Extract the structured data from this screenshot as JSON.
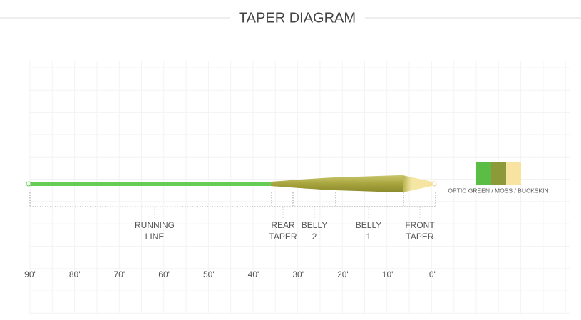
{
  "header": {
    "title": "TAPER DIAGRAM"
  },
  "sections": [
    {
      "lines": [
        "RUNNING",
        "LINE"
      ]
    },
    {
      "lines": [
        "REAR",
        "TAPER"
      ]
    },
    {
      "lines": [
        "BELLY",
        "2"
      ]
    },
    {
      "lines": [
        "BELLY",
        "1"
      ]
    },
    {
      "lines": [
        "FRONT",
        "TAPER"
      ]
    }
  ],
  "colors": {
    "label": "OPTIC GREEN / MOSS / BUCKSKIN"
  },
  "scale": [
    "90'",
    "80'",
    "70'",
    "60'",
    "50'",
    "40'",
    "30'",
    "20'",
    "10'",
    "0'"
  ]
}
